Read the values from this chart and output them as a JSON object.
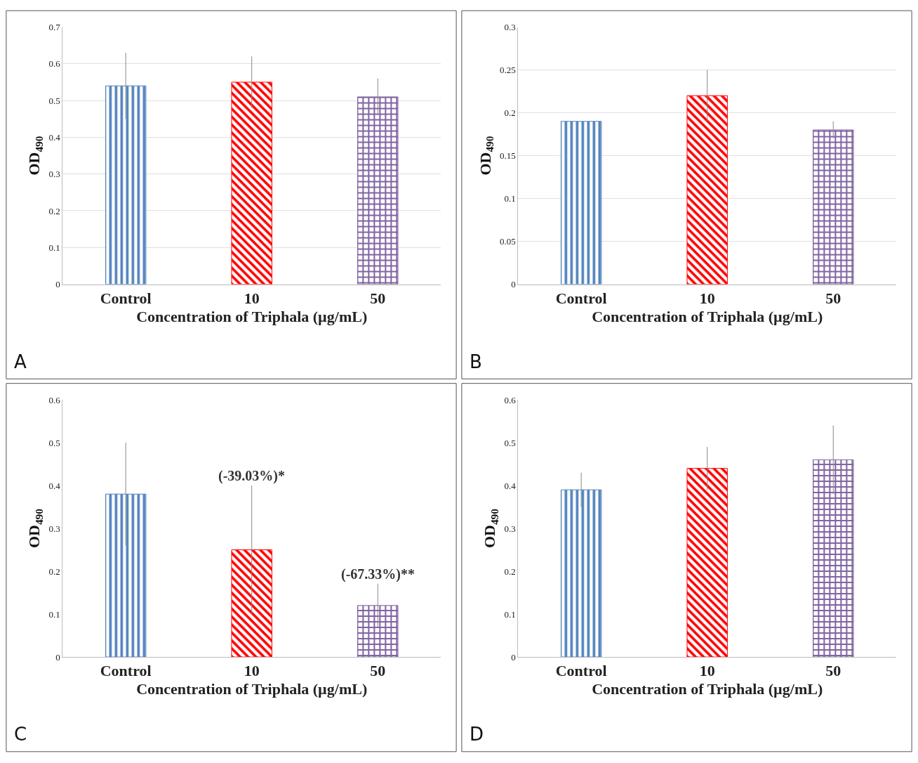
{
  "chart_data": [
    {
      "type": "bar",
      "categories": [
        "Control",
        "10",
        "50"
      ],
      "values": [
        0.54,
        0.55,
        0.51
      ],
      "errors": [
        0.09,
        0.07,
        0.05
      ],
      "colors": [
        "#4f81bd",
        "#ff0000",
        "#8064a2"
      ],
      "ylabel": "OD$_{490}$",
      "xlabel": "Concentration of Triphala (µg/mL)",
      "ylim": [
        0,
        0.7
      ],
      "yticks": [
        0,
        0.1,
        0.2,
        0.3,
        0.4,
        0.5,
        0.6,
        0.7
      ],
      "grid": "y",
      "annotations": [
        "A"
      ]
    },
    {
      "type": "bar",
      "categories": [
        "Control",
        "10",
        "50"
      ],
      "values": [
        0.19,
        0.22,
        0.18
      ],
      "errors": [
        null,
        0.03,
        0.01
      ],
      "colors": [
        "#4f81bd",
        "#ff0000",
        "#8064a2"
      ],
      "ylabel": "OD$_{490}$",
      "xlabel": "Concentration of Triphala (µg/mL)",
      "ylim": [
        0,
        0.3
      ],
      "yticks": [
        0,
        0.05,
        0.1,
        0.15,
        0.2,
        0.25,
        0.3
      ],
      "grid": "y",
      "annotations": [
        "B"
      ]
    },
    {
      "type": "bar",
      "categories": [
        "Control",
        "10",
        "50"
      ],
      "values": [
        0.38,
        0.25,
        0.12
      ],
      "errors": [
        0.12,
        0.15,
        0.05
      ],
      "colors": [
        "#4f81bd",
        "#ff0000",
        "#8064a2"
      ],
      "ylabel": "OD$_{490}$",
      "xlabel": "Concentration of Triphala (µg/mL)",
      "ylim": [
        0,
        0.6
      ],
      "yticks": [
        0,
        0.1,
        0.2,
        0.3,
        0.4,
        0.5,
        0.6
      ],
      "grid": false,
      "annotations": [
        {
          "text": "(-39.03%)*",
          "x": "10",
          "y": 0.4
        },
        {
          "text": "(-67.33%)**",
          "x": "50",
          "y": 0.17
        },
        "C"
      ]
    },
    {
      "type": "bar",
      "categories": [
        "Control",
        "10",
        "50"
      ],
      "values": [
        0.39,
        0.44,
        0.46
      ],
      "errors": [
        0.04,
        0.05,
        0.08
      ],
      "colors": [
        "#4f81bd",
        "#ff0000",
        "#8064a2"
      ],
      "ylabel": "OD$_{490}$",
      "xlabel": "Concentration of Triphala (µg/mL)",
      "ylim": [
        0,
        0.6
      ],
      "yticks": [
        0,
        0.1,
        0.2,
        0.3,
        0.4,
        0.5,
        0.6
      ],
      "grid": false,
      "annotations": [
        "D"
      ]
    }
  ]
}
